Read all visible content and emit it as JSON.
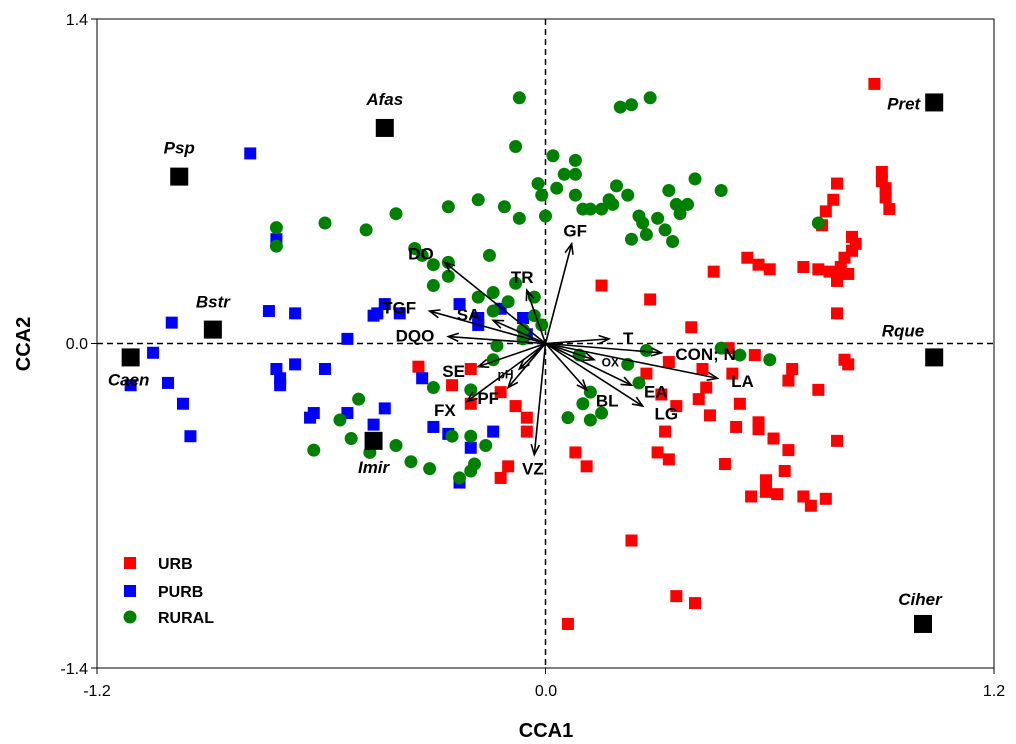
{
  "chart_data": {
    "type": "scatter",
    "title": "",
    "xlabel": "CCA1",
    "ylabel": "CCA2",
    "xlim": [
      -1.2,
      1.2
    ],
    "ylim": [
      -1.4,
      1.4
    ],
    "xticks": [
      "-1.2",
      "0.0",
      "1.2"
    ],
    "yticks": [
      "1.4",
      "0.0",
      "-1.4"
    ],
    "legend_position": "bottom-left",
    "colors": {
      "URB": "#ff0000",
      "PURB": "#0000ff",
      "RURAL": "#008000",
      "species": "#000000"
    },
    "series": [
      {
        "name": "URB",
        "marker": "square",
        "points": [
          [
            0.88,
            1.12
          ],
          [
            0.9,
            0.74
          ],
          [
            0.9,
            0.7
          ],
          [
            0.91,
            0.67
          ],
          [
            0.91,
            0.63
          ],
          [
            0.92,
            0.58
          ],
          [
            0.78,
            0.69
          ],
          [
            0.77,
            0.62
          ],
          [
            0.74,
            0.51
          ],
          [
            0.75,
            0.57
          ],
          [
            0.82,
            0.46
          ],
          [
            0.83,
            0.43
          ],
          [
            0.82,
            0.4
          ],
          [
            0.8,
            0.37
          ],
          [
            0.79,
            0.33
          ],
          [
            0.78,
            0.3
          ],
          [
            0.81,
            0.3
          ],
          [
            0.78,
            0.27
          ],
          [
            0.76,
            0.31
          ],
          [
            0.73,
            0.32
          ],
          [
            0.69,
            0.33
          ],
          [
            0.6,
            0.32
          ],
          [
            0.57,
            0.34
          ],
          [
            0.54,
            0.37
          ],
          [
            0.45,
            0.31
          ],
          [
            0.15,
            0.25
          ],
          [
            0.28,
            0.19
          ],
          [
            0.78,
            0.13
          ],
          [
            0.39,
            0.07
          ],
          [
            0.49,
            -0.02
          ],
          [
            0.56,
            -0.05
          ],
          [
            0.8,
            -0.07
          ],
          [
            0.81,
            -0.09
          ],
          [
            0.66,
            -0.11
          ],
          [
            0.27,
            -0.13
          ],
          [
            0.33,
            -0.08
          ],
          [
            0.42,
            -0.11
          ],
          [
            0.5,
            -0.13
          ],
          [
            0.43,
            -0.19
          ],
          [
            0.65,
            -0.16
          ],
          [
            0.73,
            -0.2
          ],
          [
            0.31,
            -0.22
          ],
          [
            0.35,
            -0.27
          ],
          [
            0.41,
            -0.24
          ],
          [
            0.52,
            -0.26
          ],
          [
            0.32,
            -0.38
          ],
          [
            0.44,
            -0.31
          ],
          [
            0.51,
            -0.36
          ],
          [
            0.57,
            -0.34
          ],
          [
            0.57,
            -0.37
          ],
          [
            0.61,
            -0.41
          ],
          [
            0.78,
            -0.42
          ],
          [
            0.65,
            -0.46
          ],
          [
            0.3,
            -0.47
          ],
          [
            0.33,
            -0.5
          ],
          [
            0.48,
            -0.52
          ],
          [
            0.08,
            -0.47
          ],
          [
            0.11,
            -0.53
          ],
          [
            0.64,
            -0.55
          ],
          [
            0.59,
            -0.59
          ],
          [
            0.59,
            -0.64
          ],
          [
            0.55,
            -0.66
          ],
          [
            0.62,
            -0.65
          ],
          [
            0.69,
            -0.66
          ],
          [
            0.75,
            -0.67
          ],
          [
            0.71,
            -0.7
          ],
          [
            0.23,
            -0.85
          ],
          [
            0.35,
            -1.09
          ],
          [
            0.4,
            -1.12
          ],
          [
            0.06,
            -1.21
          ],
          [
            -0.34,
            -0.1
          ],
          [
            -0.2,
            -0.11
          ],
          [
            -0.25,
            -0.18
          ],
          [
            -0.12,
            -0.21
          ],
          [
            -0.08,
            -0.27
          ],
          [
            -0.2,
            -0.26
          ],
          [
            -0.05,
            -0.32
          ],
          [
            -0.1,
            -0.53
          ],
          [
            -0.12,
            -0.58
          ],
          [
            -0.05,
            -0.38
          ]
        ]
      },
      {
        "name": "PURB",
        "marker": "square",
        "points": [
          [
            -0.79,
            0.82
          ],
          [
            -1.0,
            0.09
          ],
          [
            -1.05,
            -0.04
          ],
          [
            -1.11,
            -0.18
          ],
          [
            -1.01,
            -0.17
          ],
          [
            -0.97,
            -0.26
          ],
          [
            -0.95,
            -0.4
          ],
          [
            -0.72,
            0.45
          ],
          [
            -0.74,
            0.14
          ],
          [
            -0.67,
            0.13
          ],
          [
            -0.72,
            -0.11
          ],
          [
            -0.71,
            -0.15
          ],
          [
            -0.71,
            -0.18
          ],
          [
            -0.67,
            -0.09
          ],
          [
            -0.59,
            -0.11
          ],
          [
            -0.63,
            -0.32
          ],
          [
            -0.62,
            -0.3
          ],
          [
            -0.53,
            -0.3
          ],
          [
            -0.53,
            0.02
          ],
          [
            -0.45,
            0.13
          ],
          [
            -0.46,
            0.12
          ],
          [
            -0.43,
            0.17
          ],
          [
            -0.39,
            0.13
          ],
          [
            -0.46,
            -0.35
          ],
          [
            -0.43,
            -0.28
          ],
          [
            -0.33,
            -0.15
          ],
          [
            -0.3,
            -0.36
          ],
          [
            -0.23,
            0.17
          ],
          [
            -0.26,
            -0.39
          ],
          [
            -0.18,
            0.08
          ],
          [
            -0.18,
            0.11
          ],
          [
            -0.2,
            -0.45
          ],
          [
            -0.14,
            -0.38
          ],
          [
            -0.12,
            0.15
          ],
          [
            -0.06,
            0.11
          ],
          [
            -0.23,
            -0.6
          ],
          [
            -0.05,
            0.04
          ]
        ]
      },
      {
        "name": "RURAL",
        "marker": "circle",
        "points": [
          [
            -0.72,
            0.5
          ],
          [
            -0.72,
            0.42
          ],
          [
            -0.59,
            0.52
          ],
          [
            -0.48,
            0.49
          ],
          [
            -0.4,
            0.56
          ],
          [
            -0.35,
            0.41
          ],
          [
            -0.33,
            0.38
          ],
          [
            -0.3,
            0.34
          ],
          [
            -0.26,
            0.59
          ],
          [
            -0.26,
            0.35
          ],
          [
            -0.18,
            0.62
          ],
          [
            -0.11,
            0.59
          ],
          [
            -0.07,
            0.54
          ],
          [
            -0.02,
            0.69
          ],
          [
            -0.01,
            0.64
          ],
          [
            0.0,
            0.55
          ],
          [
            0.03,
            0.67
          ],
          [
            0.05,
            0.73
          ],
          [
            0.08,
            0.64
          ],
          [
            0.1,
            0.58
          ],
          [
            0.12,
            0.58
          ],
          [
            0.15,
            0.58
          ],
          [
            0.17,
            0.62
          ],
          [
            0.18,
            0.6
          ],
          [
            0.19,
            0.68
          ],
          [
            0.22,
            0.64
          ],
          [
            0.25,
            0.55
          ],
          [
            0.26,
            0.52
          ],
          [
            0.23,
            0.45
          ],
          [
            0.27,
            0.47
          ],
          [
            0.3,
            0.54
          ],
          [
            0.32,
            0.49
          ],
          [
            0.34,
            0.44
          ],
          [
            0.33,
            0.66
          ],
          [
            0.35,
            0.6
          ],
          [
            0.36,
            0.56
          ],
          [
            0.38,
            0.6
          ],
          [
            0.2,
            1.02
          ],
          [
            0.23,
            1.03
          ],
          [
            0.28,
            1.06
          ],
          [
            -0.07,
            1.06
          ],
          [
            -0.08,
            0.85
          ],
          [
            0.02,
            0.81
          ],
          [
            0.08,
            0.79
          ],
          [
            0.4,
            0.71
          ],
          [
            0.47,
            0.66
          ],
          [
            0.73,
            0.52
          ],
          [
            0.08,
            0.73
          ],
          [
            -0.08,
            0.26
          ],
          [
            -0.15,
            0.38
          ],
          [
            -0.14,
            0.22
          ],
          [
            -0.1,
            0.18
          ],
          [
            -0.06,
            0.06
          ],
          [
            -0.06,
            0.02
          ],
          [
            -0.03,
            0.12
          ],
          [
            -0.03,
            0.2
          ],
          [
            -0.01,
            0.08
          ],
          [
            -0.3,
            -0.19
          ],
          [
            -0.3,
            0.25
          ],
          [
            -0.26,
            0.29
          ],
          [
            -0.18,
            0.2
          ],
          [
            -0.14,
            0.14
          ],
          [
            -0.13,
            -0.01
          ],
          [
            -0.14,
            -0.07
          ],
          [
            -0.2,
            -0.2
          ],
          [
            -0.16,
            -0.44
          ],
          [
            -0.25,
            -0.4
          ],
          [
            -0.19,
            -0.52
          ],
          [
            -0.2,
            -0.55
          ],
          [
            -0.23,
            -0.58
          ],
          [
            -0.31,
            -0.54
          ],
          [
            -0.4,
            -0.44
          ],
          [
            -0.36,
            -0.51
          ],
          [
            -0.5,
            -0.24
          ],
          [
            -0.47,
            -0.47
          ],
          [
            -0.62,
            -0.46
          ],
          [
            -0.55,
            -0.33
          ],
          [
            -0.52,
            -0.41
          ],
          [
            0.09,
            -0.05
          ],
          [
            0.1,
            -0.26
          ],
          [
            0.12,
            -0.33
          ],
          [
            0.15,
            -0.3
          ],
          [
            0.12,
            -0.21
          ],
          [
            0.06,
            -0.32
          ],
          [
            0.25,
            -0.17
          ],
          [
            0.22,
            -0.09
          ],
          [
            0.27,
            -0.03
          ],
          [
            0.47,
            -0.02
          ],
          [
            0.52,
            -0.05
          ],
          [
            0.6,
            -0.07
          ],
          [
            -0.2,
            -0.4
          ]
        ]
      }
    ],
    "species": [
      {
        "name": "Afas",
        "x": -0.43,
        "y": 0.93
      },
      {
        "name": "Psp",
        "x": -0.98,
        "y": 0.72
      },
      {
        "name": "Bstr",
        "x": -0.89,
        "y": 0.06
      },
      {
        "name": "Caen",
        "x": -1.11,
        "y": -0.06
      },
      {
        "name": "Imir",
        "x": -0.46,
        "y": -0.42
      },
      {
        "name": "Pret",
        "x": 1.04,
        "y": 1.04
      },
      {
        "name": "Rque",
        "x": 1.04,
        "y": -0.06
      },
      {
        "name": "Ciher",
        "x": 1.01,
        "y": -1.21
      }
    ],
    "vectors": [
      {
        "name": "GF",
        "x": 0.07,
        "y": 0.43
      },
      {
        "name": "DO",
        "x": -0.27,
        "y": 0.35
      },
      {
        "name": "TR",
        "x": -0.05,
        "y": 0.23
      },
      {
        "name": "TGF",
        "x": -0.31,
        "y": 0.14
      },
      {
        "name": "SA",
        "x": -0.14,
        "y": 0.1
      },
      {
        "name": "DQO",
        "x": -0.26,
        "y": 0.03
      },
      {
        "name": "T",
        "x": 0.17,
        "y": 0.02
      },
      {
        "name": "CON; N",
        "x": 0.31,
        "y": -0.04
      },
      {
        "name": "LA",
        "x": 0.46,
        "y": -0.15
      },
      {
        "name": "OX",
        "x": 0.13,
        "y": -0.07
      },
      {
        "name": "EA",
        "x": 0.23,
        "y": -0.18
      },
      {
        "name": "LG",
        "x": 0.26,
        "y": -0.27
      },
      {
        "name": "BL",
        "x": 0.11,
        "y": -0.2
      },
      {
        "name": "pH",
        "x": -0.07,
        "y": -0.11
      },
      {
        "name": "PF",
        "x": -0.1,
        "y": -0.19
      },
      {
        "name": "SE",
        "x": -0.18,
        "y": -0.1
      },
      {
        "name": "FX",
        "x": -0.21,
        "y": -0.25
      },
      {
        "name": "VZ",
        "x": -0.03,
        "y": -0.48
      }
    ]
  }
}
